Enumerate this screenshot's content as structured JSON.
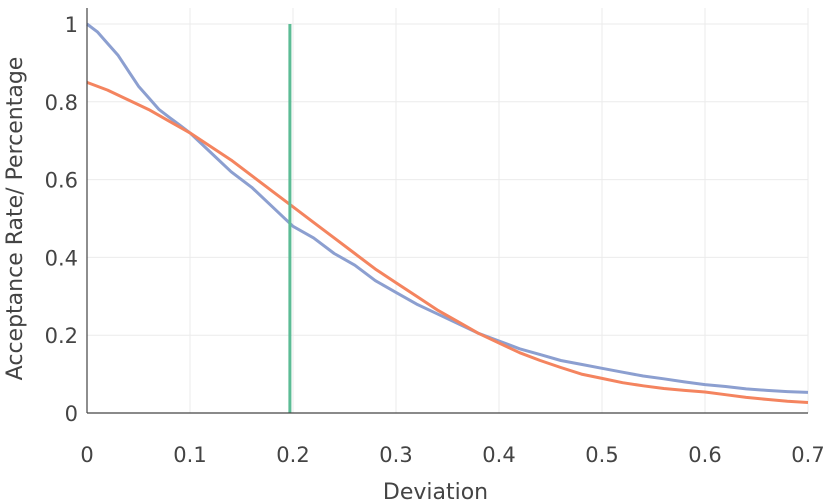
{
  "chart_data": {
    "type": "line",
    "title": "",
    "xlabel": "Deviation",
    "ylabel": "Acceptance Rate/ Percentage",
    "xlim": [
      0,
      0.7
    ],
    "ylim": [
      0,
      1
    ],
    "grid": true,
    "x_ticks": [
      {
        "value": 0,
        "label": "0"
      },
      {
        "value": 0.1,
        "label": "0.1"
      },
      {
        "value": 0.2,
        "label": "0.2"
      },
      {
        "value": 0.3,
        "label": "0.3"
      },
      {
        "value": 0.4,
        "label": "0.4"
      },
      {
        "value": 0.5,
        "label": "0.5"
      },
      {
        "value": 0.6,
        "label": "0.6"
      },
      {
        "value": 0.7,
        "label": "0.7"
      }
    ],
    "y_ticks": [
      {
        "value": 0,
        "label": "0"
      },
      {
        "value": 0.2,
        "label": "0.2"
      },
      {
        "value": 0.4,
        "label": "0.4"
      },
      {
        "value": 0.6,
        "label": "0.6"
      },
      {
        "value": 0.8,
        "label": "0.8"
      },
      {
        "value": 1,
        "label": "1"
      }
    ],
    "series": [
      {
        "color": "#8c9fd0",
        "x": [
          0,
          0.01,
          0.02,
          0.03,
          0.04,
          0.05,
          0.06,
          0.07,
          0.08,
          0.09,
          0.1,
          0.12,
          0.14,
          0.16,
          0.18,
          0.2,
          0.22,
          0.24,
          0.26,
          0.28,
          0.3,
          0.32,
          0.34,
          0.36,
          0.38,
          0.4,
          0.42,
          0.44,
          0.46,
          0.48,
          0.5,
          0.52,
          0.54,
          0.56,
          0.58,
          0.6,
          0.62,
          0.64,
          0.66,
          0.68,
          0.7
        ],
        "y": [
          1.0,
          0.98,
          0.95,
          0.92,
          0.88,
          0.84,
          0.81,
          0.78,
          0.76,
          0.74,
          0.72,
          0.67,
          0.62,
          0.58,
          0.53,
          0.48,
          0.45,
          0.41,
          0.38,
          0.34,
          0.31,
          0.28,
          0.255,
          0.23,
          0.205,
          0.185,
          0.165,
          0.15,
          0.135,
          0.125,
          0.115,
          0.105,
          0.095,
          0.088,
          0.08,
          0.073,
          0.068,
          0.062,
          0.058,
          0.055,
          0.053
        ]
      },
      {
        "color": "#f4845f",
        "x": [
          0,
          0.02,
          0.04,
          0.06,
          0.08,
          0.1,
          0.12,
          0.14,
          0.16,
          0.18,
          0.2,
          0.22,
          0.24,
          0.26,
          0.28,
          0.3,
          0.32,
          0.34,
          0.36,
          0.38,
          0.4,
          0.42,
          0.44,
          0.46,
          0.48,
          0.5,
          0.52,
          0.54,
          0.56,
          0.58,
          0.6,
          0.62,
          0.64,
          0.66,
          0.68,
          0.7
        ],
        "y": [
          0.85,
          0.83,
          0.805,
          0.78,
          0.75,
          0.72,
          0.685,
          0.65,
          0.61,
          0.57,
          0.53,
          0.49,
          0.45,
          0.41,
          0.37,
          0.335,
          0.3,
          0.265,
          0.235,
          0.205,
          0.18,
          0.155,
          0.135,
          0.117,
          0.1,
          0.089,
          0.078,
          0.07,
          0.063,
          0.058,
          0.054,
          0.047,
          0.04,
          0.035,
          0.03,
          0.027
        ]
      },
      {
        "color": "#5cbc95",
        "x": [
          0.197,
          0.197
        ],
        "y": [
          0,
          1
        ]
      }
    ]
  }
}
